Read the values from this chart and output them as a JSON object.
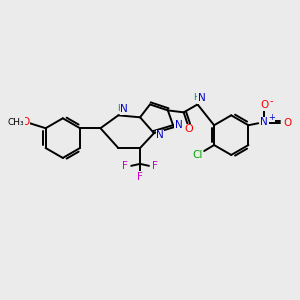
{
  "background_color": "#ebebeb",
  "bond_color": "#000000",
  "bond_width": 1.4,
  "atom_colors": {
    "C": "#000000",
    "N": "#0000cc",
    "O": "#ff0000",
    "F": "#cc00cc",
    "Cl": "#00aa00",
    "H": "#008888"
  },
  "figsize": [
    3.0,
    3.0
  ],
  "dpi": 100
}
